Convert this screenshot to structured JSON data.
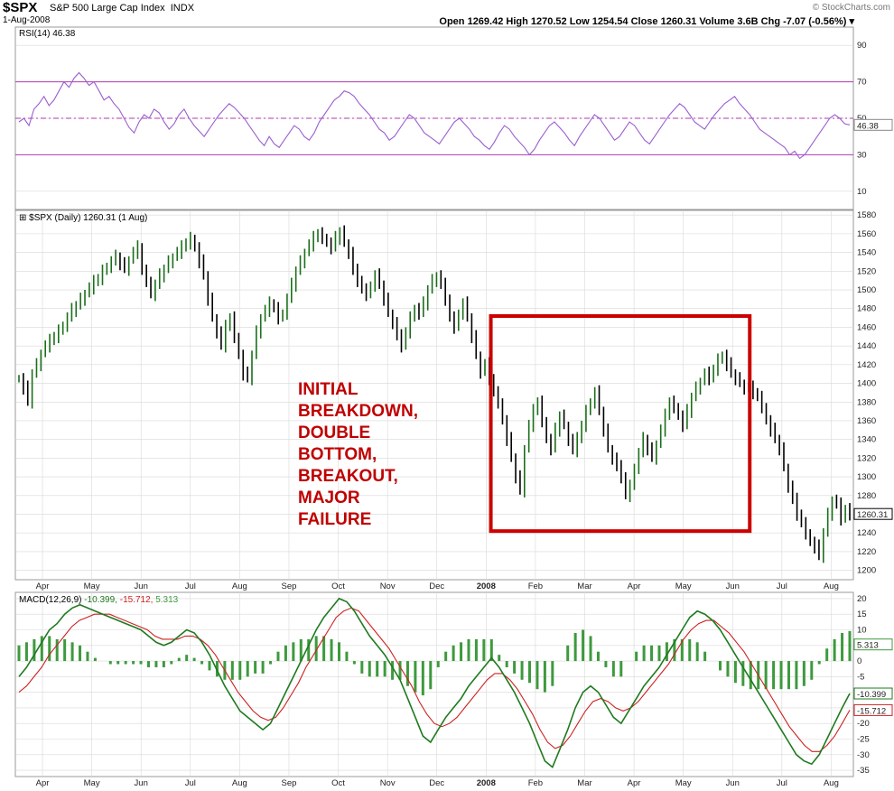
{
  "header": {
    "symbol": "$SPX",
    "name": "S&P 500 Large Cap Index",
    "exchange": "INDX",
    "date": "1-Aug-2008",
    "quote": "Open 1269.42  High 1270.52  Low 1254.54  Close 1260.31  Volume 3.6B  Chg -7.07 (-0.56%) ▾",
    "watermark": "© StockCharts.com"
  },
  "colors": {
    "price": "#1a6e1a",
    "rsi": "#9a5fd0",
    "macd_line": "#1f7a1f",
    "signal": "#cc2222",
    "hist": "#3d9a3d",
    "guide": "#b23ab2",
    "box": "#cc0000",
    "annotation": "#c00000",
    "grid": "#d8d8d8"
  },
  "chart_data": [
    {
      "type": "line",
      "id": "rsi",
      "legend": "RSI(14) 46.38",
      "ylim": [
        0,
        100
      ],
      "yticks": [
        10,
        30,
        50,
        70,
        90
      ],
      "guides": [
        30,
        50,
        70
      ],
      "last_label": "46.38",
      "series": [
        {
          "name": "RSI(14)",
          "values": [
            48,
            50,
            46,
            55,
            58,
            62,
            57,
            60,
            65,
            70,
            67,
            72,
            75,
            72,
            68,
            70,
            65,
            60,
            62,
            58,
            55,
            50,
            45,
            42,
            48,
            52,
            50,
            55,
            53,
            48,
            44,
            47,
            52,
            55,
            50,
            46,
            43,
            40,
            44,
            48,
            52,
            55,
            58,
            56,
            53,
            50,
            46,
            42,
            38,
            35,
            40,
            36,
            34,
            38,
            42,
            46,
            44,
            40,
            38,
            42,
            48,
            52,
            56,
            60,
            62,
            65,
            64,
            62,
            58,
            55,
            52,
            48,
            44,
            42,
            38,
            40,
            44,
            48,
            52,
            50,
            46,
            42,
            40,
            38,
            36,
            40,
            44,
            48,
            50,
            47,
            44,
            40,
            38,
            35,
            33,
            37,
            42,
            46,
            44,
            40,
            37,
            34,
            30,
            33,
            38,
            42,
            46,
            48,
            45,
            42,
            38,
            35,
            40,
            44,
            48,
            52,
            50,
            46,
            42,
            38,
            40,
            44,
            48,
            46,
            42,
            38,
            36,
            40,
            44,
            48,
            52,
            55,
            58,
            56,
            52,
            48,
            46,
            44,
            48,
            52,
            55,
            58,
            60,
            62,
            58,
            55,
            52,
            48,
            44,
            42,
            40,
            38,
            36,
            34,
            30,
            32,
            28,
            30,
            34,
            38,
            42,
            46,
            50,
            52,
            50,
            47,
            46.38
          ]
        }
      ]
    },
    {
      "type": "line",
      "id": "price",
      "legend": "$SPX (Daily) 1260.31 (1 Aug)",
      "ylim": [
        1190,
        1585
      ],
      "yticks": [
        1200,
        1220,
        1240,
        1260,
        1280,
        1300,
        1320,
        1340,
        1360,
        1380,
        1400,
        1420,
        1440,
        1460,
        1480,
        1500,
        1520,
        1540,
        1560,
        1580
      ],
      "last_label": "1260.31",
      "x_ticks": [
        "Apr",
        "May",
        "Jun",
        "Jul",
        "Aug",
        "Sep",
        "Oct",
        "Nov",
        "Dec",
        "2008",
        "Feb",
        "Mar",
        "Apr",
        "May",
        "Jun",
        "Jul",
        "Aug"
      ],
      "annotation": [
        "INITIAL",
        "BREAKDOWN,",
        "DOUBLE",
        "BOTTOM,",
        "BREAKOUT,",
        "MAJOR",
        "FAILURE"
      ],
      "series": [
        {
          "name": "$SPX",
          "values": [
            1405,
            1395,
            1380,
            1410,
            1420,
            1432,
            1440,
            1445,
            1450,
            1456,
            1462,
            1470,
            1478,
            1483,
            1490,
            1496,
            1502,
            1508,
            1512,
            1520,
            1525,
            1530,
            1535,
            1528,
            1522,
            1532,
            1540,
            1545,
            1520,
            1510,
            1495,
            1505,
            1515,
            1522,
            1530,
            1535,
            1540,
            1545,
            1550,
            1555,
            1545,
            1530,
            1515,
            1490,
            1470,
            1455,
            1440,
            1460,
            1470,
            1450,
            1430,
            1410,
            1405,
            1430,
            1455,
            1470,
            1478,
            1485,
            1480,
            1470,
            1475,
            1490,
            1505,
            1520,
            1530,
            1540,
            1548,
            1555,
            1560,
            1556,
            1550,
            1545,
            1555,
            1562,
            1550,
            1540,
            1520,
            1510,
            1500,
            1495,
            1505,
            1515,
            1505,
            1490,
            1475,
            1465,
            1450,
            1440,
            1455,
            1470,
            1480,
            1475,
            1485,
            1500,
            1510,
            1515,
            1505,
            1490,
            1470,
            1460,
            1475,
            1485,
            1470,
            1450,
            1430,
            1412,
            1420,
            1405,
            1390,
            1380,
            1360,
            1340,
            1320,
            1300,
            1285,
            1330,
            1355,
            1370,
            1380,
            1360,
            1340,
            1330,
            1350,
            1365,
            1355,
            1340,
            1328,
            1340,
            1355,
            1370,
            1380,
            1390,
            1370,
            1350,
            1330,
            1320,
            1310,
            1300,
            1280,
            1290,
            1310,
            1325,
            1340,
            1330,
            1320,
            1335,
            1350,
            1365,
            1380,
            1375,
            1365,
            1355,
            1370,
            1385,
            1395,
            1402,
            1410,
            1405,
            1415,
            1425,
            1430,
            1420,
            1410,
            1405,
            1400,
            1395,
            1395,
            1390,
            1385,
            1375,
            1360,
            1350,
            1340,
            1330,
            1310,
            1290,
            1275,
            1260,
            1250,
            1240,
            1230,
            1225,
            1215,
            1240,
            1260,
            1275,
            1270,
            1255,
            1265,
            1260.31
          ]
        }
      ]
    },
    {
      "type": "bar",
      "id": "macd",
      "legend": {
        "prefix": "MACD(12,26,9)",
        "macd": "-10.399",
        "signal": "-15.712",
        "hist": "5.313"
      },
      "ylim": [
        -37,
        22
      ],
      "yticks": [
        -35,
        -30,
        -25,
        -20,
        -15,
        -10,
        -5,
        0,
        5,
        10,
        15,
        20
      ],
      "x_ticks": [
        "Apr",
        "May",
        "Jun",
        "Jul",
        "Aug",
        "Sep",
        "Oct",
        "Nov",
        "Dec",
        "2008",
        "Feb",
        "Mar",
        "Apr",
        "May",
        "Jun",
        "Jul",
        "Aug"
      ],
      "last_labels": {
        "hist": "5.313",
        "macd": "-10.399",
        "signal": "-15.712"
      },
      "series": [
        {
          "name": "MACD",
          "values": [
            -5,
            -2,
            2,
            6,
            10,
            12,
            15,
            17,
            18,
            17,
            16,
            15,
            14,
            13,
            12,
            11,
            10,
            8,
            6,
            5,
            6,
            8,
            10,
            9,
            6,
            2,
            -3,
            -8,
            -12,
            -16,
            -18,
            -20,
            -22,
            -20,
            -15,
            -10,
            -5,
            0,
            5,
            10,
            14,
            17,
            20,
            19,
            16,
            12,
            8,
            5,
            2,
            -2,
            -6,
            -12,
            -18,
            -24,
            -26,
            -22,
            -18,
            -15,
            -12,
            -8,
            -5,
            -2,
            1,
            -2,
            -6,
            -10,
            -15,
            -20,
            -26,
            -32,
            -34,
            -28,
            -22,
            -15,
            -10,
            -8,
            -10,
            -14,
            -18,
            -20,
            -16,
            -12,
            -8,
            -5,
            -2,
            2,
            6,
            10,
            14,
            16,
            15,
            13,
            10,
            6,
            2,
            -2,
            -6,
            -10,
            -14,
            -18,
            -22,
            -26,
            -30,
            -32,
            -33,
            -30,
            -25,
            -20,
            -15,
            -10.399
          ]
        },
        {
          "name": "Signal",
          "values": [
            -10,
            -8,
            -5,
            -2,
            2,
            5,
            8,
            11,
            13,
            14,
            15,
            15,
            15,
            14,
            13,
            12,
            11,
            10,
            8,
            7,
            7,
            7,
            8,
            8,
            7,
            5,
            2,
            -2,
            -6,
            -10,
            -13,
            -16,
            -18,
            -19,
            -18,
            -15,
            -11,
            -7,
            -2,
            2,
            6,
            10,
            14,
            16,
            17,
            16,
            13,
            10,
            7,
            4,
            0,
            -4,
            -8,
            -13,
            -17,
            -20,
            -21,
            -20,
            -18,
            -15,
            -12,
            -9,
            -6,
            -4,
            -4,
            -6,
            -9,
            -13,
            -17,
            -22,
            -26,
            -28,
            -27,
            -24,
            -20,
            -16,
            -13,
            -12,
            -13,
            -15,
            -16,
            -15,
            -13,
            -10,
            -7,
            -4,
            -1,
            3,
            7,
            10,
            12,
            13,
            13,
            11,
            9,
            6,
            3,
            -1,
            -5,
            -9,
            -13,
            -17,
            -21,
            -24,
            -27,
            -29,
            -29,
            -27,
            -24,
            -20,
            -15.712
          ]
        }
      ]
    }
  ]
}
